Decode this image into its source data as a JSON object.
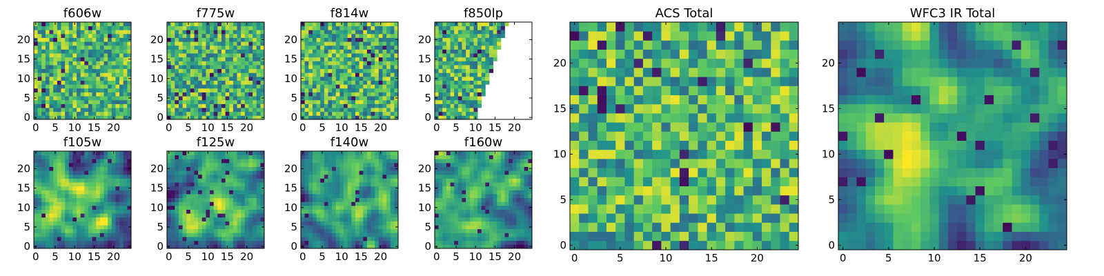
{
  "figure": {
    "background": "#ffffff",
    "colormap": [
      "#440154",
      "#3b528b",
      "#21918c",
      "#5ec962",
      "#fde725"
    ]
  },
  "chart_data": [
    {
      "type": "heatmap",
      "title": "f606w",
      "grid": [
        25,
        25
      ],
      "xlim": [
        -0.5,
        24.5
      ],
      "ylim": [
        -0.5,
        24.5
      ],
      "xticks": [
        "0",
        "5",
        "10",
        "15",
        "20"
      ],
      "yticks": [
        "0",
        "5",
        "10",
        "15",
        "20"
      ],
      "pattern": "noisy",
      "seed": 11,
      "mask_slope": null,
      "grid_lines": false
    },
    {
      "type": "heatmap",
      "title": "f775w",
      "grid": [
        25,
        25
      ],
      "xlim": [
        -0.5,
        24.5
      ],
      "ylim": [
        -0.5,
        24.5
      ],
      "xticks": [
        "0",
        "5",
        "10",
        "15",
        "20"
      ],
      "yticks": [
        "0",
        "5",
        "10",
        "15",
        "20"
      ],
      "pattern": "noisy",
      "seed": 23,
      "mask_slope": null,
      "grid_lines": false
    },
    {
      "type": "heatmap",
      "title": "f814w",
      "grid": [
        25,
        25
      ],
      "xlim": [
        -0.5,
        24.5
      ],
      "ylim": [
        -0.5,
        24.5
      ],
      "xticks": [
        "0",
        "5",
        "10",
        "15",
        "20"
      ],
      "yticks": [
        "0",
        "5",
        "10",
        "15",
        "20"
      ],
      "pattern": "noisy",
      "seed": 37,
      "mask_slope": null,
      "grid_lines": false
    },
    {
      "type": "heatmap",
      "title": "f850lp",
      "grid": [
        25,
        25
      ],
      "xlim": [
        -0.5,
        24.5
      ],
      "ylim": [
        -0.5,
        24.5
      ],
      "xticks": [
        "0",
        "5",
        "10",
        "15",
        "20"
      ],
      "yticks": [
        "0",
        "5",
        "10",
        "15",
        "20"
      ],
      "pattern": "noisy",
      "seed": 41,
      "mask_slope": 0.34,
      "grid_lines": false
    },
    {
      "type": "heatmap",
      "title": "f105w",
      "grid": [
        25,
        25
      ],
      "xlim": [
        -0.5,
        24.5
      ],
      "ylim": [
        -0.5,
        24.5
      ],
      "xticks": [
        "0",
        "5",
        "10",
        "15",
        "20"
      ],
      "yticks": [
        "0",
        "5",
        "10",
        "15",
        "20"
      ],
      "pattern": "smooth",
      "seed": 53,
      "mask_slope": null,
      "grid_lines": false
    },
    {
      "type": "heatmap",
      "title": "f125w",
      "grid": [
        25,
        25
      ],
      "xlim": [
        -0.5,
        24.5
      ],
      "ylim": [
        -0.5,
        24.5
      ],
      "xticks": [
        "0",
        "5",
        "10",
        "15",
        "20"
      ],
      "yticks": [
        "0",
        "5",
        "10",
        "15",
        "20"
      ],
      "pattern": "smooth",
      "seed": 67,
      "mask_slope": null,
      "grid_lines": false
    },
    {
      "type": "heatmap",
      "title": "f140w",
      "grid": [
        25,
        25
      ],
      "xlim": [
        -0.5,
        24.5
      ],
      "ylim": [
        -0.5,
        24.5
      ],
      "xticks": [
        "0",
        "5",
        "10",
        "15",
        "20"
      ],
      "yticks": [
        "0",
        "5",
        "10",
        "15",
        "20"
      ],
      "pattern": "smooth",
      "seed": 79,
      "mask_slope": null,
      "grid_lines": false
    },
    {
      "type": "heatmap",
      "title": "f160w",
      "grid": [
        25,
        25
      ],
      "xlim": [
        -0.5,
        24.5
      ],
      "ylim": [
        -0.5,
        24.5
      ],
      "xticks": [
        "0",
        "5",
        "10",
        "15",
        "20"
      ],
      "yticks": [
        "0",
        "5",
        "10",
        "15",
        "20"
      ],
      "pattern": "smooth",
      "seed": 83,
      "mask_slope": null,
      "grid_lines": false
    },
    {
      "type": "heatmap",
      "title": "ACS Total",
      "grid": [
        25,
        25
      ],
      "xlim": [
        -0.5,
        24.5
      ],
      "ylim": [
        -0.5,
        24.5
      ],
      "xticks": [
        "0",
        "5",
        "10",
        "15",
        "20"
      ],
      "yticks": [
        "0",
        "5",
        "10",
        "15",
        "20"
      ],
      "pattern": "noisy",
      "seed": 97,
      "mask_slope": null,
      "grid_lines": false
    },
    {
      "type": "heatmap",
      "title": "WFC3 IR Total",
      "grid": [
        25,
        25
      ],
      "xlim": [
        -0.5,
        24.5
      ],
      "ylim": [
        -0.5,
        24.5
      ],
      "xticks": [
        "0",
        "5",
        "10",
        "15",
        "20"
      ],
      "yticks": [
        "0",
        "5",
        "10",
        "15",
        "20"
      ],
      "pattern": "smooth",
      "seed": 101,
      "mask_slope": null,
      "grid_lines": false
    }
  ]
}
